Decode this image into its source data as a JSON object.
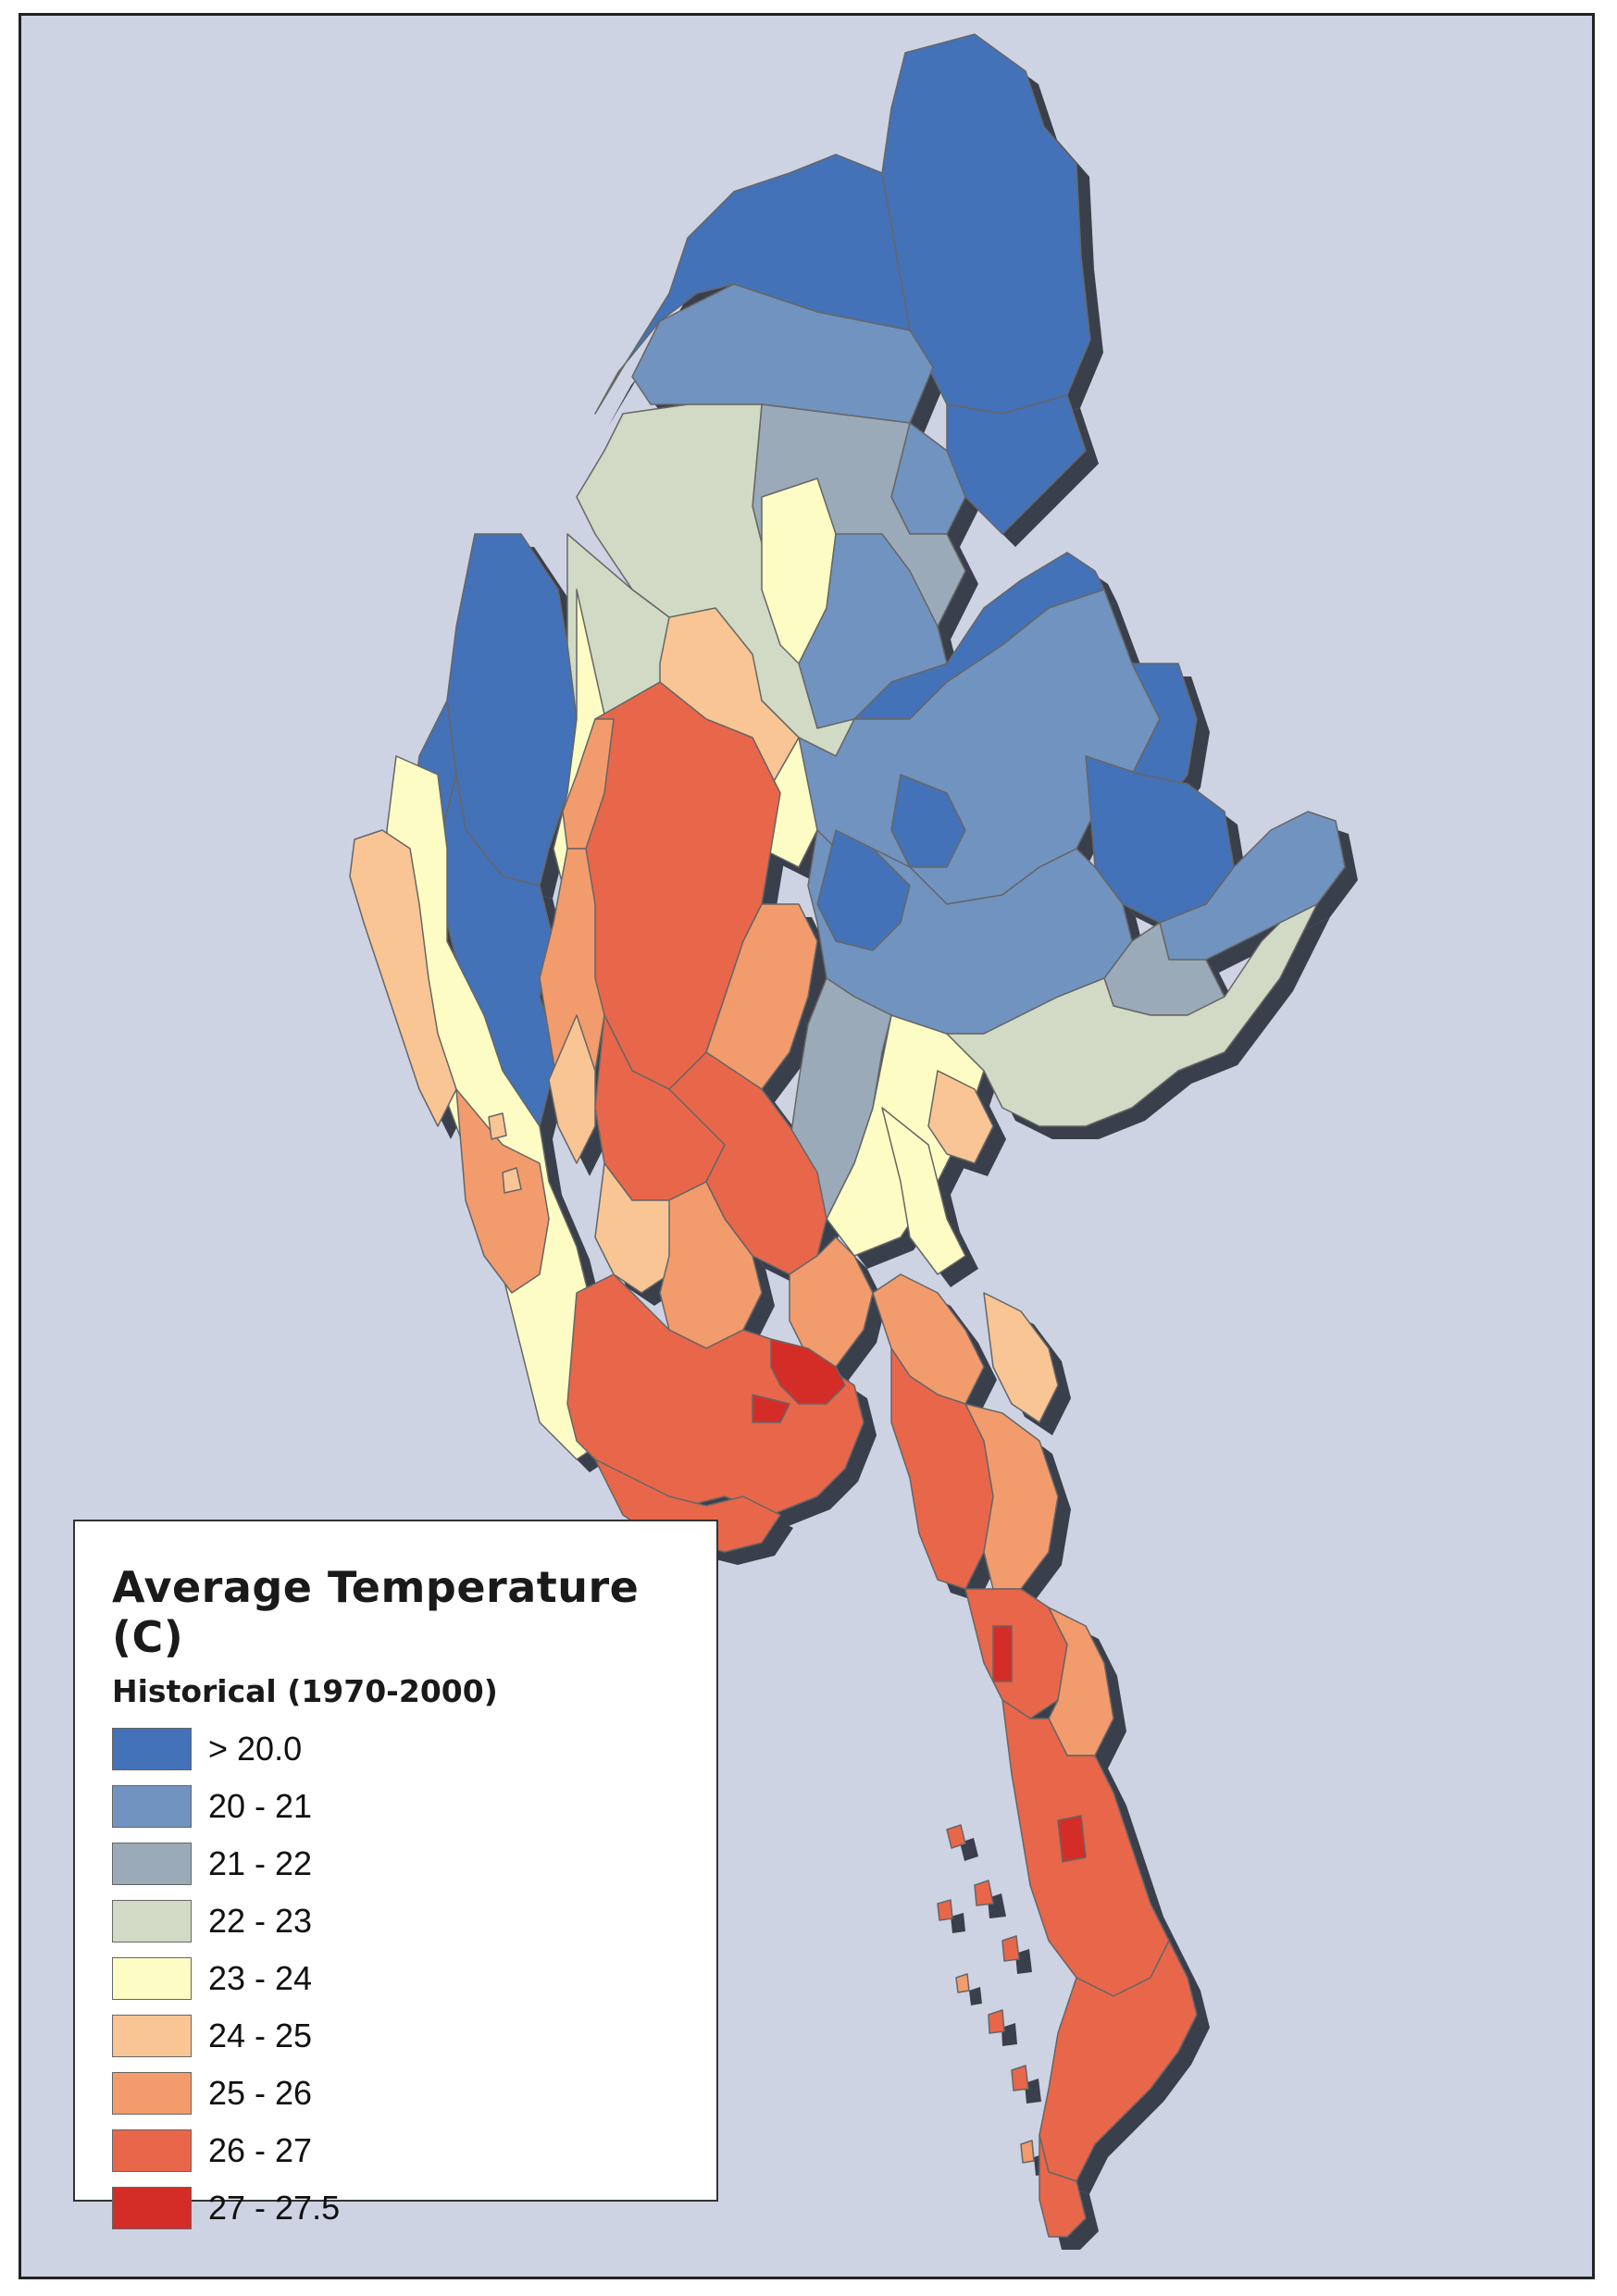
{
  "map": {
    "background_color": "#cdd3e3",
    "border_color": "#666666",
    "shadow_color": "#3a3f4c"
  },
  "legend": {
    "title": "Average Temperature (C)",
    "subtitle": "Historical (1970-2000)",
    "items": [
      {
        "label": "> 20.0",
        "color": "#4472b8"
      },
      {
        "label": "20 - 21",
        "color": "#7193c0"
      },
      {
        "label": "21 - 22",
        "color": "#9aaab8"
      },
      {
        "label": "22 - 23",
        "color": "#d1dac4"
      },
      {
        "label": "23 - 24",
        "color": "#fdfcc4"
      },
      {
        "label": "24 - 25",
        "color": "#f9c594"
      },
      {
        "label": "25 - 26",
        "color": "#f29b6c"
      },
      {
        "label": "26 - 27",
        "color": "#e8664a"
      },
      {
        "label": "27 - 27.5",
        "color": "#d42d27"
      }
    ]
  }
}
